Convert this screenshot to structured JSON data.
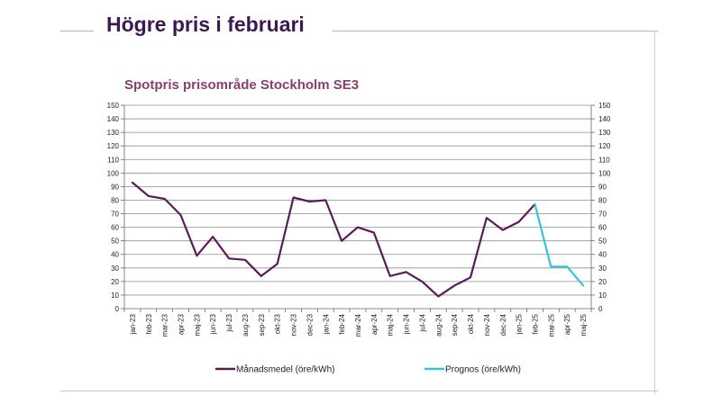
{
  "slide": {
    "title": "Högre pris i februari"
  },
  "chart_data": {
    "type": "line",
    "title": "Spotpris prisområde Stockholm SE3",
    "xlabel": "",
    "ylabel": "",
    "ylim": [
      0,
      150
    ],
    "y_ticks": [
      0,
      10,
      20,
      30,
      40,
      50,
      60,
      70,
      80,
      90,
      100,
      110,
      120,
      130,
      140,
      150
    ],
    "secondary_y_axis": true,
    "grid": "horizontal",
    "legend_position": "bottom",
    "categories": [
      "jan-23",
      "feb-23",
      "mar-23",
      "apr-23",
      "maj-23",
      "jun-23",
      "jul-23",
      "aug-23",
      "sep-23",
      "okt-23",
      "nov-23",
      "dec-23",
      "jan-24",
      "feb-24",
      "mar-24",
      "apr-24",
      "maj-24",
      "jun-24",
      "jul-24",
      "aug-24",
      "sep-24",
      "okt-24",
      "nov-24",
      "dec-24",
      "jan-25",
      "feb-25",
      "mar-25",
      "apr-25",
      "maj-25"
    ],
    "series": [
      {
        "name": "Månadsmedel (öre/kWh)",
        "color": "#5b1a5c",
        "values": [
          93,
          83,
          81,
          69,
          39,
          53,
          37,
          36,
          24,
          33,
          82,
          79,
          80,
          50,
          60,
          56,
          24,
          27,
          20,
          9,
          17,
          23,
          67,
          58,
          64,
          77,
          null,
          null,
          null
        ]
      },
      {
        "name": "Prognos (öre/kWh)",
        "color": "#33c5e0",
        "values": [
          null,
          null,
          null,
          null,
          null,
          null,
          null,
          null,
          null,
          null,
          null,
          null,
          null,
          null,
          null,
          null,
          null,
          null,
          null,
          null,
          null,
          null,
          null,
          null,
          null,
          77,
          31,
          31,
          17
        ]
      }
    ]
  }
}
